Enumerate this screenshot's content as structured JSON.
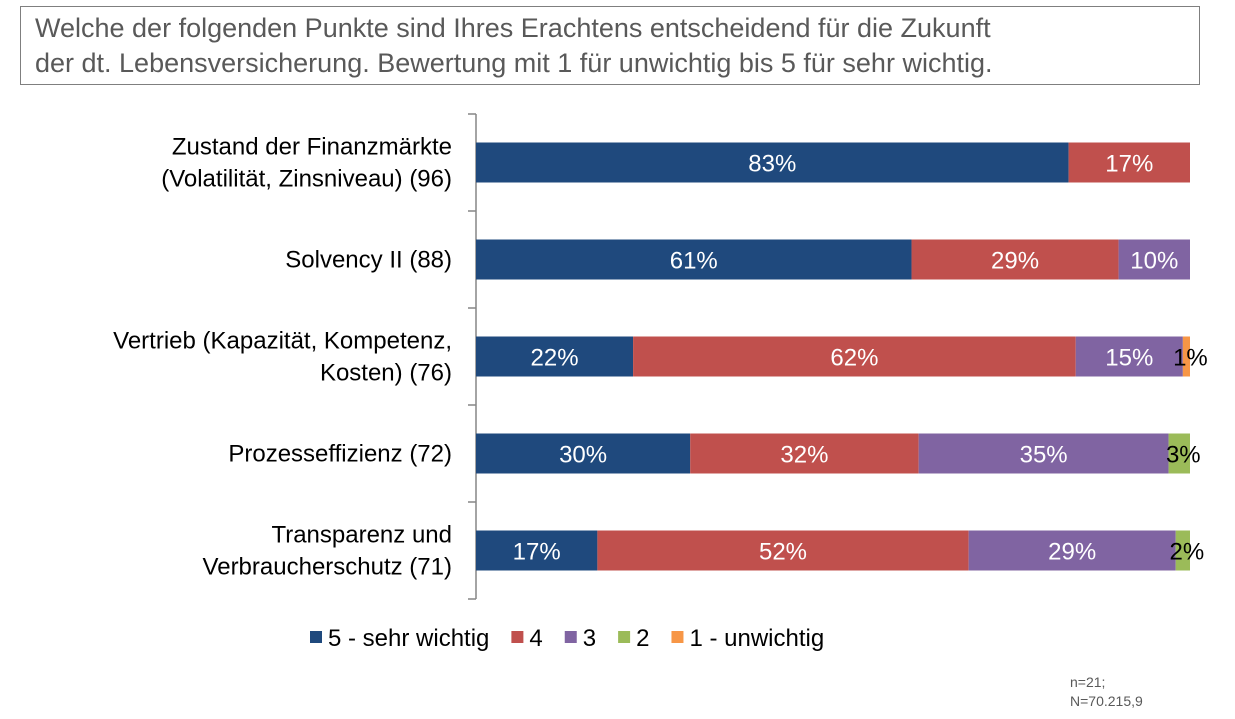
{
  "title": {
    "line1": "Welche der folgenden Punkte sind Ihres Erachtens entscheidend für die Zukunft",
    "line2": "der dt. Lebensversicherung. Bewertung mit 1 für unwichtig bis 5 für sehr wichtig."
  },
  "chart_data": {
    "type": "bar",
    "orientation": "horizontal",
    "stacked": true,
    "xlim": [
      0,
      100
    ],
    "categories": [
      [
        "Zustand der Finanzmärkte",
        "(Volatilität, Zinsniveau) (96)"
      ],
      [
        "Solvency II (88)"
      ],
      [
        "Vertrieb (Kapazität, Kompetenz,",
        "Kosten) (76)"
      ],
      [
        "Prozesseffizienz (72)"
      ],
      [
        "Transparenz und",
        "Verbraucherschutz (71)"
      ]
    ],
    "series": [
      {
        "name": "5 - sehr wichtig",
        "color": "#1f497d",
        "values": [
          83,
          61,
          22,
          30,
          17
        ],
        "labels": [
          "83%",
          "61%",
          "22%",
          "30%",
          "17%"
        ]
      },
      {
        "name": "4",
        "color": "#c0504d",
        "values": [
          17,
          29,
          62,
          32,
          52
        ],
        "labels": [
          "17%",
          "29%",
          "62%",
          "32%",
          "52%"
        ]
      },
      {
        "name": "3",
        "color": "#8064a2",
        "values": [
          0,
          10,
          15,
          35,
          29
        ],
        "labels": [
          "",
          "10%",
          "15%",
          "35%",
          "29%"
        ]
      },
      {
        "name": "2",
        "color": "#9bbb59",
        "values": [
          0,
          0,
          0,
          3,
          2
        ],
        "labels": [
          "",
          "",
          "",
          "3%",
          "2%"
        ]
      },
      {
        "name": "1 - unwichtig",
        "color": "#f79646",
        "values": [
          0,
          0,
          1,
          0,
          0
        ],
        "labels": [
          "",
          "",
          "1%",
          "",
          ""
        ]
      }
    ],
    "legend_position": "bottom",
    "grid": false
  },
  "footnote": {
    "line1": "n=21;",
    "line2": "N=70.215,9"
  }
}
